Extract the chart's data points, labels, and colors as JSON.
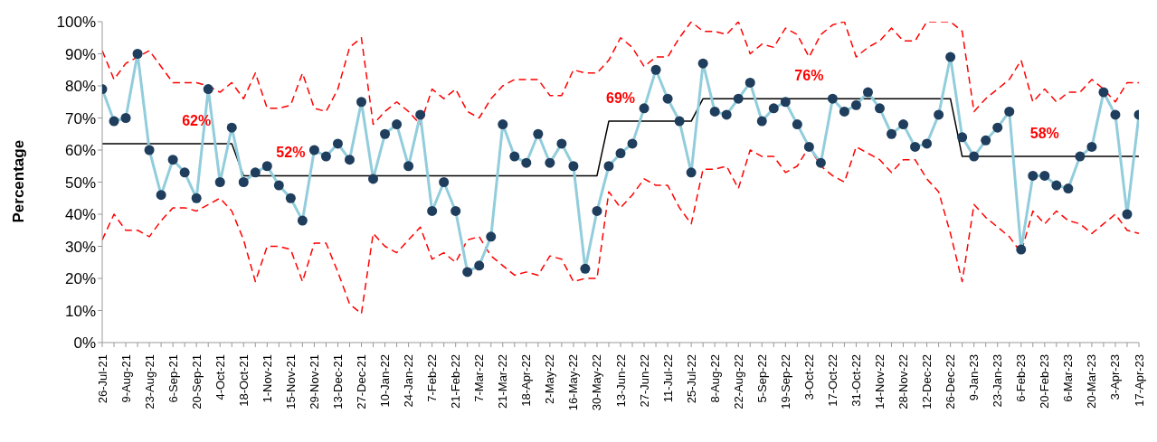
{
  "chart_data": {
    "type": "line",
    "ylabel": "Percentage",
    "categories": [
      "26-Jul-21",
      null,
      "9-Aug-21",
      null,
      "23-Aug-21",
      null,
      "6-Sep-21",
      null,
      "20-Sep-21",
      null,
      "4-Oct-21",
      null,
      "18-Oct-21",
      null,
      "1-Nov-21",
      null,
      "15-Nov-21",
      null,
      "29-Nov-21",
      null,
      "13-Dec-21",
      null,
      "27-Dec-21",
      null,
      "10-Jan-22",
      null,
      "24-Jan-22",
      null,
      "7-Feb-22",
      null,
      "21-Feb-22",
      null,
      "7-Mar-22",
      null,
      "21-Mar-22",
      null,
      "18-Apr-22",
      null,
      "2-May-22",
      null,
      "16-May-22",
      null,
      "30-May-22",
      null,
      "13-Jun-22",
      null,
      "27-Jun-22",
      null,
      "11-Jul-22",
      null,
      "25-Jul-22",
      null,
      "8-Aug-22",
      null,
      "22-Aug-22",
      null,
      "5-Sep-22",
      null,
      "19-Sep-22",
      null,
      "3-Oct-22",
      null,
      "17-Oct-22",
      null,
      "31-Oct-22",
      null,
      "14-Nov-22",
      null,
      "28-Nov-22",
      null,
      "12-Dec-22",
      null,
      "26-Dec-22",
      null,
      "9-Jan-23",
      null,
      "23-Jan-23",
      null,
      "6-Feb-23",
      null,
      "20-Feb-23",
      null,
      "6-Mar-23",
      null,
      "20-Mar-23",
      null,
      "3-Apr-23",
      null,
      "17-Apr-23"
    ],
    "series": [
      {
        "color": "#ff0000",
        "line_style": "dashed",
        "marker": "none",
        "values": [
          91,
          82,
          87,
          89,
          91,
          86,
          81,
          81,
          81,
          80,
          78,
          81,
          76,
          84,
          73,
          73,
          74,
          84,
          73,
          72,
          79,
          92,
          95,
          68,
          72,
          75,
          72,
          68,
          79,
          76,
          79,
          72,
          70,
          76,
          80,
          82,
          82,
          82,
          77,
          77,
          85,
          84,
          84,
          88,
          95,
          92,
          86,
          89,
          89,
          95,
          100,
          97,
          97,
          96,
          100,
          90,
          93,
          92,
          98,
          96,
          89,
          96,
          99,
          100,
          89,
          92,
          94,
          98,
          94,
          94,
          100,
          100,
          100,
          97,
          72,
          76,
          79,
          82,
          88,
          75,
          79,
          75,
          78,
          78,
          82,
          79,
          75,
          81,
          81
        ]
      },
      {
        "color": "#ff0000",
        "line_style": "dashed",
        "marker": "none",
        "values": [
          32,
          40,
          35,
          35,
          33,
          38,
          42,
          42,
          41,
          43,
          45,
          41,
          32,
          19,
          30,
          30,
          29,
          19,
          31,
          31,
          22,
          12,
          9,
          34,
          30,
          28,
          32,
          36,
          26,
          28,
          25,
          32,
          33,
          27,
          24,
          21,
          22,
          21,
          27,
          26,
          19,
          20,
          20,
          47,
          42,
          46,
          51,
          49,
          49,
          42,
          37,
          54,
          54,
          55,
          48,
          60,
          58,
          58,
          53,
          55,
          61,
          55,
          52,
          50,
          61,
          59,
          57,
          53,
          57,
          57,
          51,
          47,
          34,
          19,
          43,
          39,
          36,
          33,
          28,
          41,
          37,
          41,
          38,
          37,
          34,
          37,
          40,
          35,
          34
        ]
      },
      {
        "color": "#000000",
        "line_style": "solid",
        "marker": "none",
        "values": [
          62,
          62,
          62,
          62,
          62,
          62,
          62,
          62,
          62,
          62,
          62,
          62,
          52,
          52,
          52,
          52,
          52,
          52,
          52,
          52,
          52,
          52,
          52,
          52,
          52,
          52,
          52,
          52,
          52,
          52,
          52,
          52,
          52,
          52,
          52,
          52,
          52,
          52,
          52,
          52,
          52,
          52,
          52,
          69,
          69,
          69,
          69,
          69,
          69,
          69,
          69,
          76,
          76,
          76,
          76,
          76,
          76,
          76,
          76,
          76,
          76,
          76,
          76,
          76,
          76,
          76,
          76,
          76,
          76,
          76,
          76,
          76,
          76,
          58,
          58,
          58,
          58,
          58,
          58,
          58,
          58,
          58,
          58,
          58,
          58,
          58,
          58,
          58,
          58
        ]
      },
      {
        "color": "#92cddc",
        "line_style": "solid",
        "marker": "circle",
        "values": [
          79,
          69,
          70,
          90,
          60,
          46,
          57,
          53,
          45,
          79,
          50,
          67,
          50,
          53,
          55,
          49,
          45,
          38,
          60,
          58,
          62,
          57,
          75,
          51,
          65,
          68,
          55,
          71,
          41,
          50,
          41,
          22,
          24,
          33,
          68,
          58,
          56,
          65,
          56,
          62,
          55,
          23,
          41,
          55,
          59,
          62,
          73,
          85,
          76,
          69,
          53,
          87,
          72,
          71,
          76,
          81,
          69,
          73,
          75,
          68,
          61,
          56,
          76,
          72,
          74,
          78,
          73,
          65,
          68,
          61,
          62,
          71,
          89,
          64,
          58,
          63,
          67,
          72,
          29,
          52,
          52,
          49,
          48,
          58,
          61,
          78,
          71,
          40,
          71
        ]
      }
    ],
    "ylim": [
      0,
      100
    ],
    "yticks": [
      {
        "value": 0,
        "label": "0%"
      },
      {
        "value": 10,
        "label": "10%"
      },
      {
        "value": 20,
        "label": "20%"
      },
      {
        "value": 30,
        "label": "30%"
      },
      {
        "value": 40,
        "label": "40%"
      },
      {
        "value": 50,
        "label": "50%"
      },
      {
        "value": 60,
        "label": "60%"
      },
      {
        "value": 70,
        "label": "70%"
      },
      {
        "value": 80,
        "label": "80%"
      },
      {
        "value": 90,
        "label": "90%"
      },
      {
        "value": 100,
        "label": "100%"
      }
    ],
    "annotations": [
      {
        "text": "62%",
        "x": "20-Sep-21",
        "y": 62
      },
      {
        "text": "52%",
        "x": "15-Nov-21",
        "y": 52
      },
      {
        "text": "69%",
        "x": "13-Jun-22",
        "y": 69
      },
      {
        "text": "76%",
        "x": "3-Oct-22",
        "y": 76
      },
      {
        "text": "58%",
        "x": "20-Feb-23",
        "y": 58
      }
    ],
    "grid": false,
    "legend": false
  }
}
